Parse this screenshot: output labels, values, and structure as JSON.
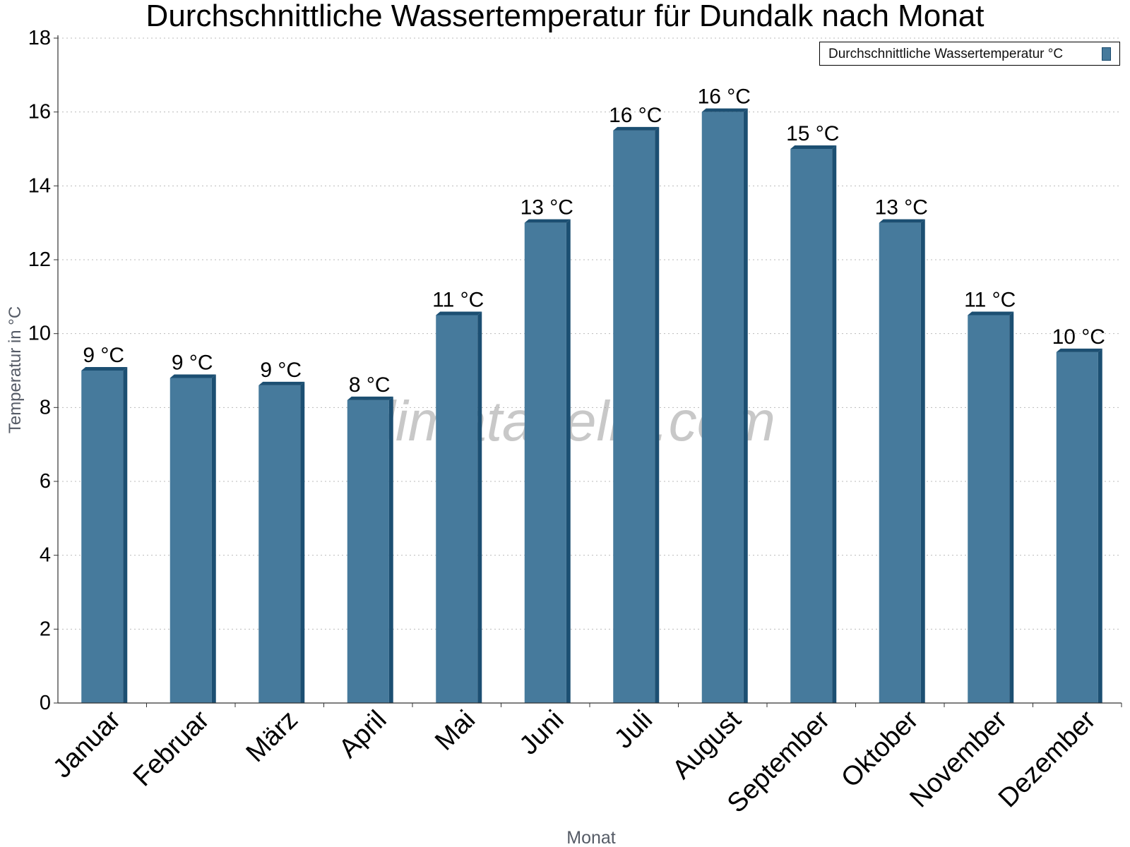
{
  "chart_data": {
    "type": "bar",
    "title": "Durchschnittliche Wassertemperatur für Dundalk nach Monat",
    "xlabel": "Monat",
    "ylabel": "Temperatur in °C",
    "ylim": [
      0,
      18
    ],
    "yticks": [
      "0",
      "2",
      "4",
      "6",
      "8",
      "10",
      "12",
      "14",
      "16",
      "18"
    ],
    "grid": true,
    "legend_position": "top-right",
    "categories": [
      "Januar",
      "Februar",
      "März",
      "April",
      "Mai",
      "Juni",
      "Juli",
      "August",
      "September",
      "Oktober",
      "November",
      "Dezember"
    ],
    "series": [
      {
        "name": "Durchschnittliche Wassertemperatur °C",
        "values": [
          9.0,
          8.8,
          8.6,
          8.2,
          10.5,
          13.0,
          15.5,
          16.0,
          15.0,
          13.0,
          10.5,
          9.5
        ],
        "labels": [
          "9 °C",
          "9 °C",
          "9 °C",
          "8 °C",
          "11 °C",
          "13 °C",
          "16 °C",
          "16 °C",
          "15 °C",
          "13 °C",
          "11 °C",
          "10 °C"
        ]
      }
    ],
    "colors": {
      "bar": "#467a9c",
      "bar_side": "#1c4f72",
      "bar_top": "#1c4f72",
      "grid": "#bbbbbb"
    },
    "watermark": "klimatabelle.com"
  }
}
